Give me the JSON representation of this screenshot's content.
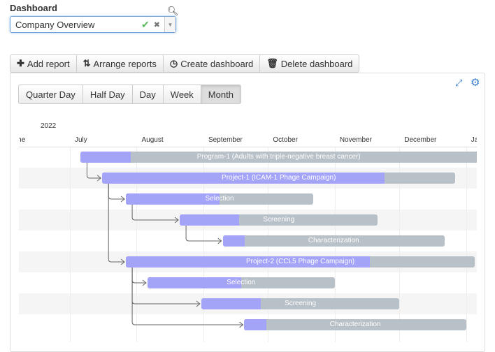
{
  "dashboard": {
    "label": "Dashboard",
    "selected": "Company Overview"
  },
  "toolbar": {
    "add": "Add report",
    "arrange": "Arrange reports",
    "create": "Create dashboard",
    "delete": "Delete dashboard"
  },
  "view_modes": [
    {
      "label": "Quarter Day"
    },
    {
      "label": "Half Day"
    },
    {
      "label": "Day"
    },
    {
      "label": "Week"
    },
    {
      "label": "Month",
      "active": true
    }
  ],
  "gantt": {
    "year": "2022",
    "months": [
      {
        "label": "June",
        "start": "2022-06-01"
      },
      {
        "label": "July",
        "start": "2022-07-01"
      },
      {
        "label": "August",
        "start": "2022-08-01"
      },
      {
        "label": "September",
        "start": "2022-09-01"
      },
      {
        "label": "October",
        "start": "2022-10-01"
      },
      {
        "label": "November",
        "start": "2022-11-01"
      },
      {
        "label": "December",
        "start": "2022-12-01"
      },
      {
        "label": "January",
        "start": "2023-01-01"
      }
    ],
    "tasks": [
      {
        "name": "Program-1 (Adults with triple-negative breast cancer)",
        "start": "2022-07-06",
        "end": "2023-01-15",
        "progress": 12
      },
      {
        "name": "Project-1 (ICAM-1 Phage Campaign)",
        "start": "2022-07-16",
        "end": "2022-12-27",
        "progress": 80,
        "parent": 0
      },
      {
        "name": "Selection",
        "start": "2022-07-27",
        "end": "2022-10-22",
        "progress": 50,
        "parent": 1
      },
      {
        "name": "Screening",
        "start": "2022-08-21",
        "end": "2022-11-21",
        "progress": 30,
        "parent": 2
      },
      {
        "name": "Characterization",
        "start": "2022-09-10",
        "end": "2022-12-22",
        "progress": 10,
        "parent": 3
      },
      {
        "name": "Project-2 (CCL5 Phage Campaign)",
        "start": "2022-07-27",
        "end": "2023-01-05",
        "progress": 70,
        "parent": 1
      },
      {
        "name": "Selection",
        "start": "2022-08-06",
        "end": "2022-11-01",
        "progress": 50,
        "parent": 5
      },
      {
        "name": "Screening",
        "start": "2022-08-31",
        "end": "2022-12-01",
        "progress": 30,
        "parent": 5
      },
      {
        "name": "Characterization",
        "start": "2022-09-20",
        "end": "2023-01-01",
        "progress": 10,
        "parent": 5
      }
    ]
  }
}
